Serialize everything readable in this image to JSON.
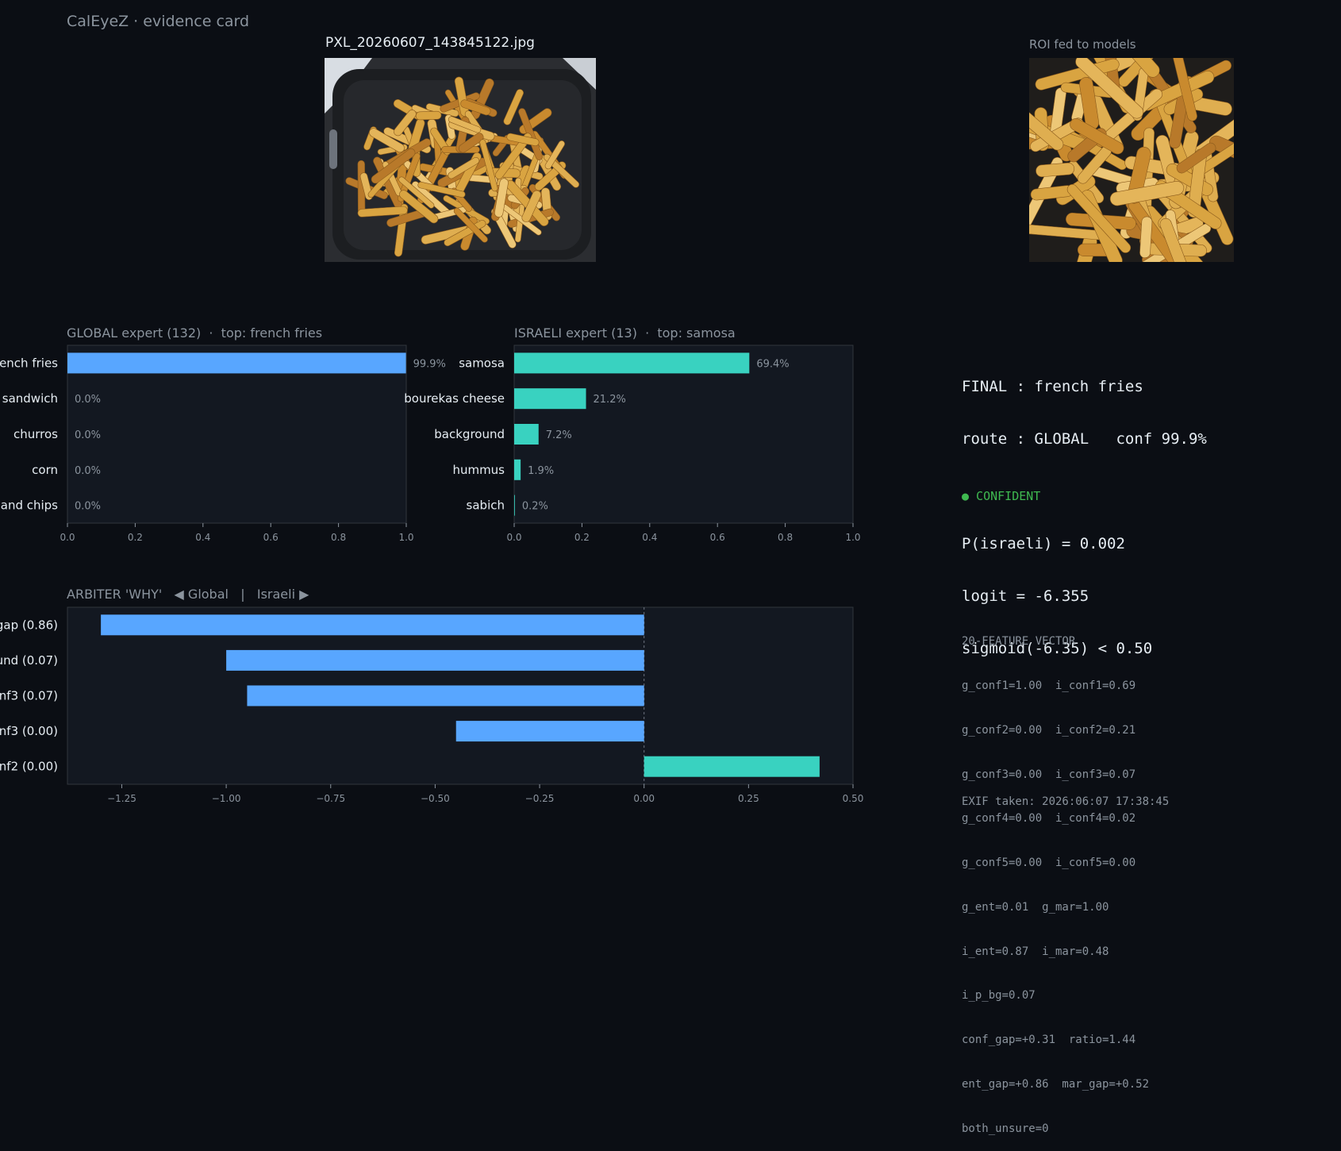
{
  "header": {
    "title": "CalEyeZ · evidence card",
    "filename": "PXL_20260607_143845122.jpg",
    "roi_label": "ROI fed to models"
  },
  "colors": {
    "background": "#0b0e14",
    "panel": "#131821",
    "global_bar": "#58a6ff",
    "israeli_bar": "#39d2c0",
    "confident": "#3fb950"
  },
  "final": {
    "lines": [
      "FINAL : french fries",
      "route : GLOBAL   conf 99.9%",
      "",
      "P(israeli) = 0.002",
      "logit = -6.355",
      "sigmoid(-6.35) < 0.50"
    ],
    "status": "● CONFIDENT"
  },
  "features": {
    "title": "20-FEATURE VECTOR",
    "lines": [
      "g_conf1=1.00  i_conf1=0.69",
      "g_conf2=0.00  i_conf2=0.21",
      "g_conf3=0.00  i_conf3=0.07",
      "g_conf4=0.00  i_conf4=0.02",
      "g_conf5=0.00  i_conf5=0.00",
      "g_ent=0.01  g_mar=1.00",
      "i_ent=0.87  i_mar=0.48",
      "i_p_bg=0.07",
      "conf_gap=+0.31  ratio=1.44",
      "ent_gap=+0.86  mar_gap=+0.52",
      "both_unsure=0"
    ],
    "exif": "EXIF taken: 2026:06:07 17:38:45"
  },
  "chart_data": [
    {
      "type": "bar",
      "orientation": "horizontal",
      "title": "GLOBAL expert (132)  ·  top: french fries",
      "categories": [
        "french fries",
        "sandwich",
        "churros",
        "corn",
        "and chips"
      ],
      "values": [
        0.999,
        0.0,
        0.0,
        0.0,
        0.0
      ],
      "value_labels": [
        "99.9%",
        "0.0%",
        "0.0%",
        "0.0%",
        "0.0%"
      ],
      "xlim": [
        0,
        1
      ],
      "xticks": [
        "0.0",
        "0.2",
        "0.4",
        "0.6",
        "0.8",
        "1.0"
      ],
      "color": "#58a6ff"
    },
    {
      "type": "bar",
      "orientation": "horizontal",
      "title": "ISRAELI expert (13)  ·  top: samosa",
      "categories": [
        "samosa",
        "bourekas cheese",
        "background",
        "hummus",
        "sabich"
      ],
      "values": [
        0.694,
        0.212,
        0.072,
        0.019,
        0.002
      ],
      "value_labels": [
        "69.4%",
        "21.2%",
        "7.2%",
        "1.9%",
        "0.2%"
      ],
      "xlim": [
        0,
        1
      ],
      "xticks": [
        "0.0",
        "0.2",
        "0.4",
        "0.6",
        "0.8",
        "1.0"
      ],
      "color": "#39d2c0"
    },
    {
      "type": "bar",
      "orientation": "horizontal",
      "title": "ARBITER 'WHY'   ◀ Global   |   Israeli ▶",
      "categories": [
        "gap (0.86)",
        "und (0.07)",
        "nf3 (0.07)",
        "nf3 (0.00)",
        "nf2 (0.00)"
      ],
      "values": [
        -1.3,
        -1.0,
        -0.95,
        -0.45,
        0.42
      ],
      "xlim": [
        -1.38,
        0.5
      ],
      "xticks": [
        -1.25,
        -1.0,
        -0.75,
        -0.5,
        -0.25,
        0.0,
        0.25,
        0.5
      ],
      "xtick_labels": [
        "−1.25",
        "−1.00",
        "−0.75",
        "−0.50",
        "−0.25",
        "0.00",
        "0.25",
        "0.50"
      ],
      "negative_color": "#58a6ff",
      "positive_color": "#39d2c0"
    }
  ]
}
